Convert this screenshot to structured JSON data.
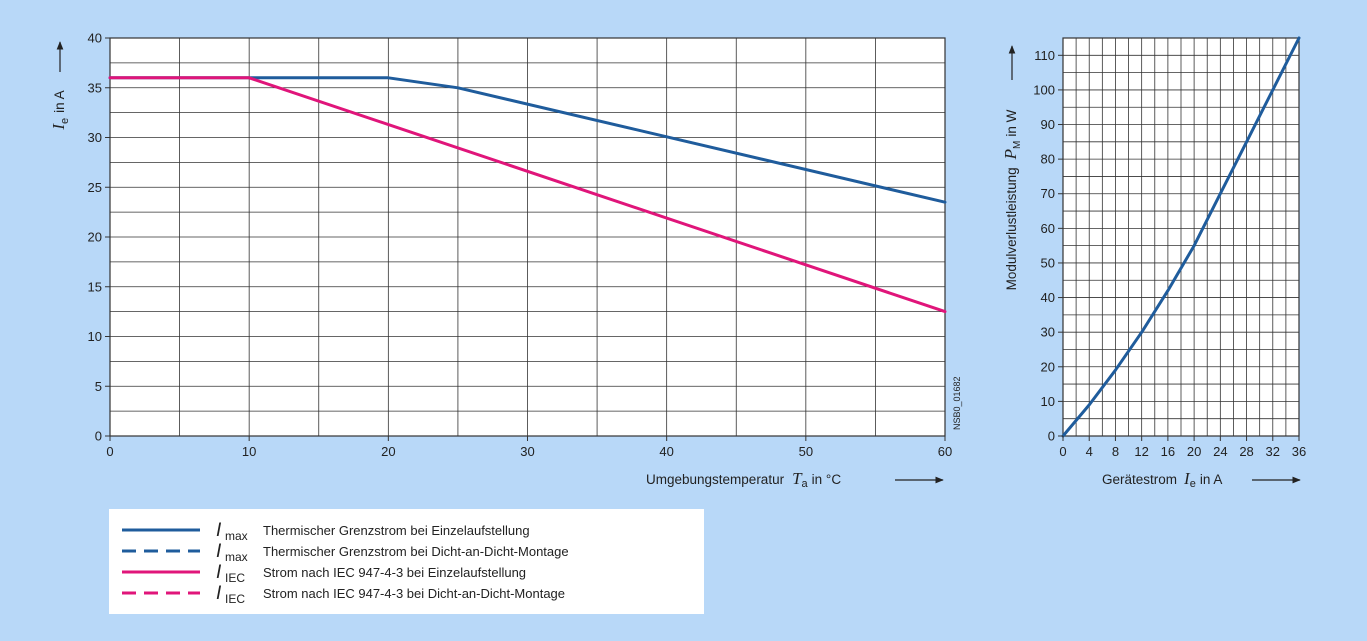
{
  "background_color": "#b8d8f8",
  "colors": {
    "blue": "#1f5c9c",
    "magenta": "#e0157a",
    "grid": "#333333"
  },
  "chart_data": [
    {
      "type": "line",
      "xlim": [
        0,
        60
      ],
      "ylim": [
        0,
        40
      ],
      "x_ticks": [
        0,
        10,
        20,
        30,
        40,
        50,
        60
      ],
      "y_ticks": [
        0,
        5,
        10,
        15,
        20,
        25,
        30,
        35,
        40
      ],
      "grid": true,
      "xlabel": {
        "text": "Umgebungstemperatur",
        "symbol": "T",
        "sub": "a",
        "unit": "in °C"
      },
      "ylabel": {
        "symbol": "I",
        "sub": "e",
        "unit": "in A"
      },
      "series": [
        {
          "color": "#1f5c9c",
          "style": "solid",
          "x": [
            0,
            10,
            20,
            25,
            60
          ],
          "y": [
            36,
            36,
            36,
            35,
            23.5
          ]
        },
        {
          "color": "#e0157a",
          "style": "solid",
          "x": [
            0,
            10,
            60
          ],
          "y": [
            36,
            36,
            12.5
          ]
        }
      ],
      "side_code": "NSB0_01682"
    },
    {
      "type": "line",
      "xlim": [
        0,
        36
      ],
      "ylim": [
        0,
        115
      ],
      "x_ticks": [
        0,
        4,
        8,
        12,
        16,
        20,
        24,
        28,
        32,
        36
      ],
      "y_ticks": [
        0,
        10,
        20,
        30,
        40,
        50,
        60,
        70,
        80,
        90,
        100,
        110
      ],
      "grid": true,
      "xlabel": {
        "text": "Gerätestrom",
        "symbol": "I",
        "sub": "e",
        "unit": "in A"
      },
      "ylabel": {
        "text": "Modulverlustleistung",
        "symbol": "P",
        "sub": "M",
        "unit": "in W"
      },
      "series": [
        {
          "color": "#1f5c9c",
          "style": "solid",
          "x": [
            0,
            4,
            8,
            12,
            16,
            20,
            24,
            28,
            32,
            36
          ],
          "y": [
            0,
            9,
            19,
            30,
            42,
            55,
            70,
            85,
            100,
            115
          ]
        }
      ]
    }
  ],
  "legend": [
    {
      "symbol": "I",
      "sub": "max",
      "text": "Thermischer Grenzstrom bei Einzelaufstellung",
      "color": "#1f5c9c",
      "dash": false
    },
    {
      "symbol": "I",
      "sub": "max",
      "text": "Thermischer Grenzstrom bei Dicht-an-Dicht-Montage",
      "color": "#1f5c9c",
      "dash": true
    },
    {
      "symbol": "I",
      "sub": "IEC",
      "text": "Strom nach IEC 947-4-3 bei Einzelaufstellung",
      "color": "#e0157a",
      "dash": false
    },
    {
      "symbol": "I",
      "sub": "IEC",
      "text": "Strom nach IEC 947-4-3 bei Dicht-an-Dicht-Montage",
      "color": "#e0157a",
      "dash": true
    }
  ]
}
